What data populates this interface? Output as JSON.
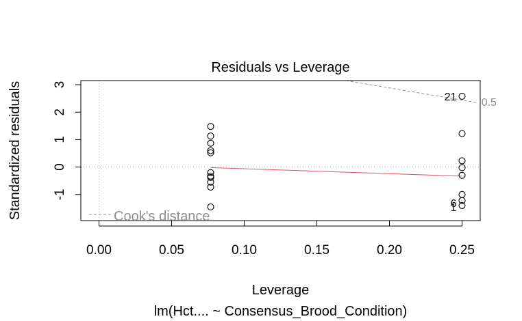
{
  "chart_data": {
    "type": "scatter",
    "title": "Residuals vs Leverage",
    "xlabel": "Leverage",
    "ylabel": "Standardized residuals",
    "subtitle": "lm(Hct.... ~ Consensus_Brood_Condition)",
    "xlim": [
      -0.0125,
      0.2625
    ],
    "ylim": [
      -1.95,
      3.15
    ],
    "x_ticks": [
      0.0,
      0.05,
      0.1,
      0.15,
      0.2,
      0.25
    ],
    "x_tick_labels": [
      "0.00",
      "0.05",
      "0.10",
      "0.15",
      "0.20",
      "0.25"
    ],
    "y_ticks": [
      -1,
      0,
      1,
      2,
      3
    ],
    "y_tick_labels": [
      "-1",
      "0",
      "1",
      "2",
      "3"
    ],
    "grid": false,
    "series": [
      {
        "points": [
          {
            "x": 0.0769,
            "y": 1.48
          },
          {
            "x": 0.0769,
            "y": 1.13
          },
          {
            "x": 0.0769,
            "y": 0.87
          },
          {
            "x": 0.0769,
            "y": 0.6
          },
          {
            "x": 0.0769,
            "y": 0.52
          },
          {
            "x": 0.0769,
            "y": -0.2
          },
          {
            "x": 0.0769,
            "y": -0.33
          },
          {
            "x": 0.0769,
            "y": -0.38
          },
          {
            "x": 0.0769,
            "y": -0.55
          },
          {
            "x": 0.0769,
            "y": -0.73
          },
          {
            "x": 0.0769,
            "y": -1.45
          },
          {
            "x": 0.25,
            "y": 2.58
          },
          {
            "x": 0.25,
            "y": 1.22
          },
          {
            "x": 0.25,
            "y": 0.23
          },
          {
            "x": 0.25,
            "y": -0.02
          },
          {
            "x": 0.25,
            "y": -0.3
          },
          {
            "x": 0.25,
            "y": -1.0
          },
          {
            "x": 0.25,
            "y": -1.22
          },
          {
            "x": 0.25,
            "y": -1.4
          }
        ]
      }
    ],
    "point_labels": [
      {
        "text": "21",
        "x": 0.25,
        "y": 2.58
      },
      {
        "text": "6",
        "x": 0.25,
        "y": -1.3
      },
      {
        "text": "1",
        "x": 0.25,
        "y": -1.45
      }
    ],
    "smooth_line": {
      "x": [
        0.0769,
        0.25
      ],
      "y": [
        -0.02,
        -0.33
      ],
      "color": "#DF536B"
    },
    "cooks_contours": [
      {
        "label": "0.5",
        "x": [
          0.17,
          0.26
        ],
        "y": [
          3.15,
          2.35
        ]
      }
    ],
    "legend": {
      "label": "Cook's distance",
      "position": "bottom-left"
    },
    "colors": {
      "smooth": "#DF536B",
      "reference": "#aaaaaa",
      "cook": "#8f8f8f"
    }
  }
}
